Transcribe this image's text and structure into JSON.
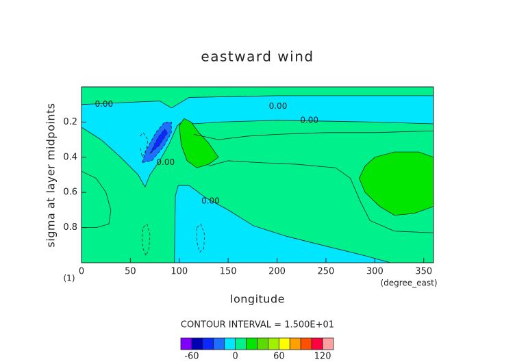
{
  "chart_data": {
    "type": "contourf",
    "title": "eastward wind",
    "xlabel": "longitude",
    "ylabel": "sigma at layer midpoints",
    "x_unit": "(degree_east)",
    "y_unit": "(1)",
    "contour_interval_text": "CONTOUR INTERVAL = 1.500E+01",
    "xlim": [
      0,
      360
    ],
    "xticks": [
      0,
      50,
      100,
      150,
      200,
      250,
      300,
      350
    ],
    "ylim": [
      1.0,
      0.0
    ],
    "yticks": [
      0.2,
      0.4,
      0.6,
      0.8
    ],
    "background_level": 0,
    "levels": [
      -75,
      -60,
      -45,
      -30,
      -15,
      0,
      15,
      30,
      45,
      60,
      75,
      90,
      105,
      120,
      135
    ],
    "colors": [
      "#7f00ff",
      "#0000b4",
      "#0a28ff",
      "#1e6eff",
      "#00e6ff",
      "#00f08c",
      "#00e600",
      "#5adc00",
      "#a0f000",
      "#ffff00",
      "#ffa000",
      "#ff5000",
      "#ff0040",
      "#ffa0a0"
    ],
    "colorbar_ticks": [
      -60,
      0,
      60,
      120
    ],
    "regions": [
      {
        "level": -15,
        "x": [
          0,
          40,
          80,
          92,
          98,
          110,
          200,
          360,
          360,
          300,
          200,
          140,
          115,
          105,
          98,
          90,
          80,
          70,
          65,
          58,
          40,
          20,
          0
        ],
        "y": [
          0.1,
          0.09,
          0.08,
          0.12,
          0.1,
          0.06,
          0.05,
          0.05,
          0.21,
          0.2,
          0.19,
          0.2,
          0.21,
          0.19,
          0.22,
          0.32,
          0.42,
          0.5,
          0.57,
          0.5,
          0.4,
          0.3,
          0.23
        ]
      },
      {
        "level": -30,
        "x": [
          62,
          66,
          76,
          85,
          92,
          92,
          84,
          72
        ],
        "y": [
          0.43,
          0.36,
          0.26,
          0.2,
          0.2,
          0.26,
          0.34,
          0.42
        ]
      },
      {
        "level": -45,
        "x": [
          70,
          78,
          85,
          88,
          80
        ],
        "y": [
          0.38,
          0.29,
          0.24,
          0.26,
          0.33
        ]
      },
      {
        "level": -15,
        "x": [
          95,
          96,
          99,
          110,
          127,
          150,
          176,
          210,
          246,
          290,
          316
        ],
        "y": [
          1.0,
          0.62,
          0.56,
          0.56,
          0.63,
          0.7,
          0.79,
          0.85,
          0.9,
          0.96,
          1.0
        ]
      },
      {
        "level": 15,
        "x": [
          100,
          105,
          112,
          120,
          130,
          140,
          130,
          118,
          108,
          102
        ],
        "y": [
          0.22,
          0.18,
          0.2,
          0.26,
          0.32,
          0.4,
          0.44,
          0.46,
          0.42,
          0.33
        ]
      },
      {
        "level": 15,
        "x": [
          290,
          300,
          320,
          345,
          360,
          360,
          340,
          320,
          305,
          290,
          284
        ],
        "y": [
          0.45,
          0.4,
          0.37,
          0.37,
          0.4,
          0.68,
          0.72,
          0.73,
          0.68,
          0.6,
          0.52
        ]
      }
    ],
    "lines": [
      {
        "style": "solid",
        "x": [
          115,
          140,
          170,
          200,
          250,
          300,
          360
        ],
        "y": [
          0.27,
          0.3,
          0.28,
          0.27,
          0.26,
          0.26,
          0.25
        ]
      },
      {
        "style": "solid",
        "x": [
          130,
          150,
          180,
          220,
          260,
          275,
          285,
          295,
          320,
          360
        ],
        "y": [
          0.45,
          0.42,
          0.43,
          0.44,
          0.46,
          0.52,
          0.65,
          0.76,
          0.82,
          0.83
        ]
      },
      {
        "style": "solid",
        "x": [
          0,
          15,
          25,
          30,
          28,
          15,
          0
        ],
        "y": [
          0.48,
          0.52,
          0.6,
          0.7,
          0.78,
          0.8,
          0.8
        ]
      },
      {
        "style": "dashed",
        "x": [
          63,
          67,
          70,
          69,
          66,
          63,
          62,
          63
        ],
        "y": [
          0.8,
          0.78,
          0.84,
          0.92,
          0.96,
          0.92,
          0.86,
          0.8
        ]
      },
      {
        "style": "dashed",
        "x": [
          118,
          122,
          126,
          125,
          121,
          118,
          118
        ],
        "y": [
          0.8,
          0.78,
          0.84,
          0.92,
          0.94,
          0.88,
          0.8
        ]
      },
      {
        "style": "dashed",
        "x": [
          60,
          63,
          68,
          66,
          62,
          60
        ],
        "y": [
          0.28,
          0.26,
          0.3,
          0.36,
          0.4,
          0.34
        ]
      }
    ],
    "contour_labels": [
      {
        "text": "0.00",
        "x": 23,
        "y": 0.1
      },
      {
        "text": "0.00",
        "x": 201,
        "y": 0.11
      },
      {
        "text": "0.00",
        "x": 233,
        "y": 0.19
      },
      {
        "text": "0.00",
        "x": 86,
        "y": 0.43
      },
      {
        "text": "0.00",
        "x": 132,
        "y": 0.65
      }
    ]
  }
}
